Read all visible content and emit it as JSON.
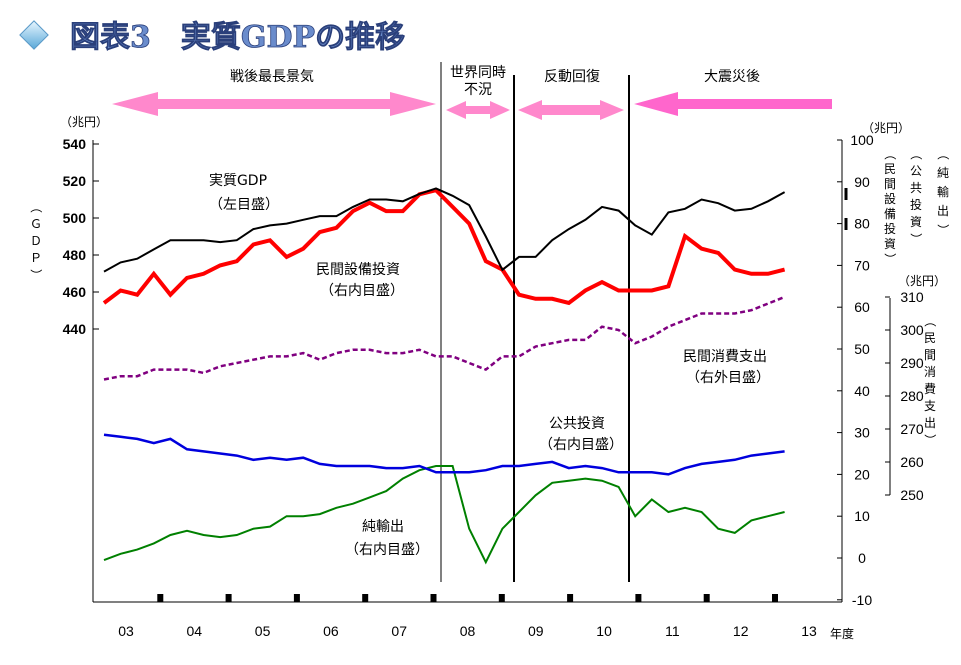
{
  "title": "図表3　実質GDPの推移",
  "units": {
    "left": "（兆円）",
    "right_top": "（兆円）",
    "right_consumption": "（兆円）"
  },
  "axis_titles": {
    "left_vertical": "（ＧＤＰ）",
    "right_capex": "（民間設備投資）",
    "right_public": "（公共投資）",
    "right_net_exports": "（純輸出）",
    "right_consumption": "（民間消費支出）",
    "x_unit": "年度"
  },
  "periods": [
    {
      "label": "戦後最長景気"
    },
    {
      "label": "世界同時不況"
    },
    {
      "label": "反動回復"
    },
    {
      "label": "大震災後"
    }
  ],
  "series_labels": {
    "gdp": [
      "実質GDP",
      "（左目盛）"
    ],
    "capex": [
      "民間設備投資",
      "（右内目盛）"
    ],
    "consumption": [
      "民間消費支出",
      "（右外目盛）"
    ],
    "public": [
      "公共投資",
      "（右内目盛）"
    ],
    "net_exports": [
      "純輸出",
      "（右内目盛）"
    ]
  },
  "colors": {
    "gdp": "#000000",
    "capex": "#ff0000",
    "consumption": "#800080",
    "public": "#0000dd",
    "net_exports": "#008000",
    "arrow_pink": "#ff88cc",
    "title": "#6a8ccc",
    "diamond": "#88c8e8"
  },
  "chart_data": {
    "type": "line",
    "x": [
      "2003Q1",
      "2003Q2",
      "2003Q3",
      "2003Q4",
      "2004Q1",
      "2004Q2",
      "2004Q3",
      "2004Q4",
      "2005Q1",
      "2005Q2",
      "2005Q3",
      "2005Q4",
      "2006Q1",
      "2006Q2",
      "2006Q3",
      "2006Q4",
      "2007Q1",
      "2007Q2",
      "2007Q3",
      "2007Q4",
      "2008Q1",
      "2008Q2",
      "2008Q3",
      "2008Q4",
      "2009Q1",
      "2009Q2",
      "2009Q3",
      "2009Q4",
      "2010Q1",
      "2010Q2",
      "2010Q3",
      "2010Q4",
      "2011Q1",
      "2011Q2",
      "2011Q3",
      "2011Q4",
      "2012Q1",
      "2012Q2",
      "2012Q3",
      "2012Q4",
      "2013Q1",
      "2013Q2"
    ],
    "x_tick_labels": [
      "03",
      "04",
      "05",
      "06",
      "07",
      "08",
      "09",
      "10",
      "11",
      "12",
      "13"
    ],
    "axes": {
      "left": {
        "ticks": [
          440,
          460,
          480,
          500,
          520,
          540
        ],
        "range": [
          380,
          545
        ]
      },
      "right_inner": {
        "ticks": [
          -10,
          0,
          10,
          20,
          30,
          40,
          50,
          60,
          70,
          80,
          90,
          100
        ],
        "range": [
          -10,
          100
        ]
      },
      "right_outer": {
        "ticks": [
          250,
          260,
          270,
          280,
          290,
          300,
          310
        ]
      }
    },
    "series": [
      {
        "name": "実質GDP",
        "axis": "left",
        "values": [
          471,
          476,
          478,
          483,
          488,
          488,
          488,
          487,
          488,
          494,
          496,
          497,
          499,
          501,
          501,
          506,
          510,
          510,
          509,
          513,
          516,
          512,
          507,
          490,
          472,
          479,
          479,
          488,
          494,
          499,
          506,
          504,
          496,
          491,
          503,
          505,
          510,
          508,
          504,
          505,
          509,
          514
        ]
      },
      {
        "name": "民間設備投資",
        "axis": "right_inner",
        "values": [
          61,
          64,
          63,
          68,
          63,
          67,
          68,
          70,
          71,
          75,
          76,
          72,
          74,
          78,
          79,
          83,
          85,
          83,
          83,
          87,
          88,
          84,
          80,
          71,
          69,
          63,
          62,
          62,
          61,
          64,
          66,
          64,
          64,
          64,
          65,
          77,
          74,
          73,
          69,
          68,
          68,
          69
        ]
      },
      {
        "name": "民間消費支出",
        "axis": "right_outer",
        "values": [
          285,
          286,
          286,
          288,
          288,
          288,
          287,
          289,
          290,
          291,
          292,
          292,
          293,
          291,
          293,
          294,
          294,
          293,
          293,
          294,
          292,
          292,
          290,
          288,
          292,
          292,
          295,
          296,
          297,
          297,
          301,
          300,
          296,
          298,
          301,
          303,
          305,
          305,
          305,
          306,
          308,
          310
        ]
      },
      {
        "name": "公共投資",
        "axis": "right_inner",
        "values": [
          29.5,
          29,
          28.5,
          27.5,
          28.5,
          26,
          25.5,
          25,
          24.5,
          23.5,
          24,
          23.5,
          24,
          22.5,
          22,
          22,
          22,
          21.5,
          21.5,
          22,
          20.5,
          20.5,
          20.5,
          21,
          22,
          22,
          22.5,
          23,
          21.5,
          22,
          21.5,
          20.5,
          20.5,
          20.5,
          20,
          21.5,
          22.5,
          23,
          23.5,
          24.5,
          25,
          25.5
        ]
      },
      {
        "name": "純輸出",
        "axis": "right_inner",
        "values": [
          -0.5,
          1,
          2,
          3.5,
          5.5,
          6.5,
          5.5,
          5,
          5.5,
          7,
          7.5,
          10,
          10,
          10.5,
          12,
          13,
          14.5,
          16,
          19,
          21,
          22,
          22,
          7,
          -1,
          7,
          11,
          15,
          18,
          18.5,
          19,
          18.5,
          17,
          10,
          14,
          11,
          12,
          11,
          7,
          6,
          9,
          10,
          11
        ]
      }
    ]
  }
}
